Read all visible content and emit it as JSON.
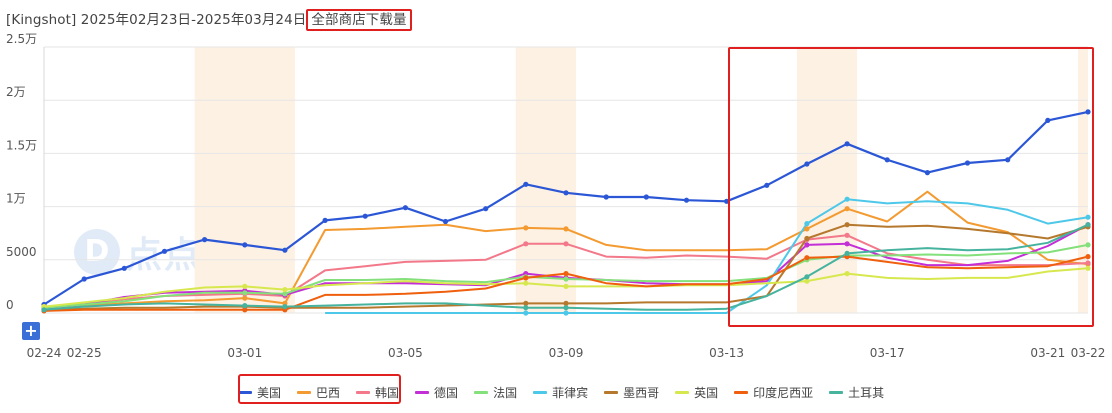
{
  "header": {
    "title_prefix": "[Kingshot] 2025年02月23日-2025年03月24日",
    "title_highlight": "全部商店下载量"
  },
  "watermark": {
    "logo": "D",
    "text": "点点数据"
  },
  "controls": {
    "zoom_label": "+"
  },
  "chart_data": {
    "type": "line",
    "x": [
      "02-24",
      "02-25",
      "02-26",
      "02-27",
      "02-28",
      "03-01",
      "03-02",
      "03-03",
      "03-04",
      "03-05",
      "03-06",
      "03-07",
      "03-08",
      "03-09",
      "03-10",
      "03-11",
      "03-12",
      "03-13",
      "03-14",
      "03-15",
      "03-16",
      "03-17",
      "03-18",
      "03-19",
      "03-20",
      "03-21",
      "03-22"
    ],
    "x_ticks": [
      "02-24",
      "02-25",
      "03-01",
      "03-05",
      "03-09",
      "03-13",
      "03-17",
      "03-21",
      "03-22"
    ],
    "y_ticks": [
      {
        "value": 0,
        "label": "0"
      },
      {
        "value": 5000,
        "label": "5000"
      },
      {
        "value": 10000,
        "label": "1万"
      },
      {
        "value": 15000,
        "label": "1.5万"
      },
      {
        "value": 20000,
        "label": "2万"
      },
      {
        "value": 25000,
        "label": "2.5万"
      }
    ],
    "ylim": [
      0,
      25000
    ],
    "grid": true,
    "legend_position": "bottom",
    "shaded_ranges": [
      [
        "02-28",
        "03-02"
      ],
      [
        "03-08",
        "03-09"
      ],
      [
        "03-15",
        "03-16"
      ],
      [
        "03-22",
        "03-22"
      ]
    ],
    "series": [
      {
        "name": "美国",
        "color": "#2b57d6",
        "values": [
          800,
          3200,
          4200,
          5800,
          6900,
          6400,
          5900,
          8700,
          9100,
          9900,
          8600,
          9800,
          12100,
          11300,
          10900,
          10900,
          10600,
          10500,
          12000,
          14000,
          15900,
          14400,
          13200,
          14100,
          14400,
          18100,
          18900
        ]
      },
      {
        "name": "巴西",
        "color": "#f39a30",
        "values": [
          600,
          700,
          900,
          1100,
          1200,
          1400,
          900,
          7800,
          7900,
          8100,
          8300,
          7700,
          8000,
          7900,
          6400,
          5900,
          5900,
          5900,
          6000,
          7900,
          9800,
          8600,
          11400,
          8500,
          7600,
          5000,
          4600
        ]
      },
      {
        "name": "韩国",
        "color": "#f2788a",
        "values": [
          500,
          900,
          1300,
          1600,
          1700,
          1800,
          1600,
          4000,
          4400,
          4800,
          4900,
          5000,
          6500,
          6500,
          5300,
          5200,
          5400,
          5300,
          5100,
          6900,
          7300,
          5600,
          5000,
          4500,
          4500,
          4500,
          4700
        ]
      },
      {
        "name": "德国",
        "color": "#c32ed6",
        "values": [
          400,
          800,
          1500,
          1900,
          2000,
          2100,
          1700,
          2800,
          2800,
          2800,
          2700,
          2600,
          3700,
          3300,
          3100,
          2800,
          2700,
          2700,
          3000,
          6400,
          6500,
          5200,
          4500,
          4500,
          4900,
          6300,
          8300
        ]
      },
      {
        "name": "法国",
        "color": "#83e07a",
        "values": [
          500,
          800,
          1100,
          1600,
          1900,
          1900,
          1800,
          3100,
          3100,
          3200,
          3000,
          2900,
          3400,
          3200,
          3100,
          3000,
          3000,
          3000,
          3300,
          5000,
          5400,
          5400,
          5500,
          5400,
          5600,
          5700,
          6400
        ]
      },
      {
        "name": "菲律宾",
        "color": "#4ec8e8",
        "values": [
          null,
          null,
          null,
          null,
          null,
          null,
          null,
          0,
          0,
          0,
          0,
          0,
          0,
          0,
          0,
          0,
          0,
          0,
          2600,
          8400,
          10700,
          10300,
          10500,
          10300,
          9700,
          8400,
          9000
        ]
      },
      {
        "name": "墨西哥",
        "color": "#b5782d",
        "values": [
          300,
          400,
          500,
          500,
          600,
          600,
          500,
          500,
          500,
          600,
          700,
          800,
          900,
          900,
          900,
          1000,
          1000,
          1000,
          1600,
          7000,
          8300,
          8100,
          8200,
          7900,
          7500,
          7000,
          8100
        ]
      },
      {
        "name": "英国",
        "color": "#d7e84e",
        "values": [
          600,
          1000,
          1400,
          2000,
          2400,
          2500,
          2200,
          2600,
          2800,
          3000,
          2800,
          2700,
          2800,
          2500,
          2500,
          2500,
          2600,
          2600,
          2800,
          3000,
          3700,
          3300,
          3200,
          3300,
          3300,
          3900,
          4200
        ]
      },
      {
        "name": "印度尼西亚",
        "color": "#ef5f0d",
        "values": [
          200,
          300,
          300,
          300,
          300,
          300,
          300,
          1700,
          1700,
          1800,
          2000,
          2300,
          3300,
          3700,
          2800,
          2500,
          2700,
          2700,
          3200,
          5200,
          5300,
          4800,
          4300,
          4200,
          4300,
          4400,
          5300
        ]
      },
      {
        "name": "土耳其",
        "color": "#46b39f",
        "values": [
          300,
          600,
          800,
          900,
          800,
          700,
          600,
          700,
          800,
          900,
          900,
          700,
          500,
          500,
          400,
          300,
          300,
          400,
          1600,
          3400,
          5600,
          5900,
          6100,
          5900,
          6000,
          6600,
          8300
        ]
      }
    ]
  }
}
